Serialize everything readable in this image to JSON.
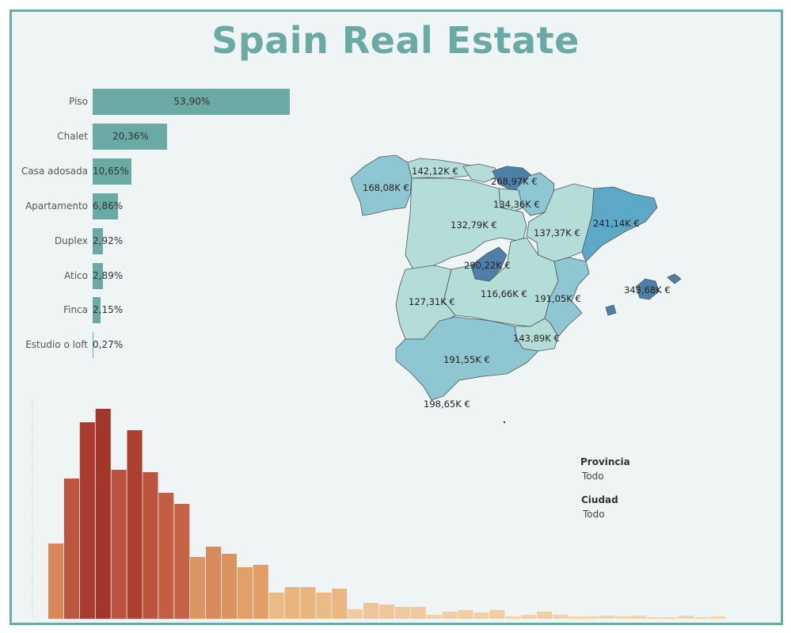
{
  "title": "Spain Real Estate",
  "filters": [
    {
      "label": "Provincia",
      "value": "Todo"
    },
    {
      "label": "Ciudad",
      "value": "Todo"
    }
  ],
  "colors": {
    "teal": "#6aa9a4",
    "map_light": "#b5ddd8",
    "map_mid": "#8ec6d2",
    "map_dark": "#5da8c7",
    "map_darkest": "#4e7fa8",
    "hist_dark": "#a3362a",
    "hist_mid": "#c9684a",
    "hist_light": "#f3d6b1"
  },
  "chart_data": [
    {
      "type": "bar",
      "orientation": "horizontal",
      "categories": [
        "Piso",
        "Chalet",
        "Casa adosada",
        "Apartamento",
        "Duplex",
        "Atico",
        "Finca",
        "Estudio o loft"
      ],
      "values": [
        53.9,
        20.36,
        10.65,
        6.86,
        2.92,
        2.89,
        2.15,
        0.27
      ],
      "labels": [
        "53,90%",
        "20,36%",
        "10,65%",
        "6,86%",
        "2,92%",
        "2,89%",
        "2,15%",
        "0,27%"
      ]
    },
    {
      "type": "map",
      "regions": [
        {
          "name": "Galicia",
          "label": "168,08K €",
          "value": 168.08
        },
        {
          "name": "Asturias",
          "label": "142,12K €",
          "value": 142.12
        },
        {
          "name": "País Vasco",
          "label": "268,97K €",
          "value": 268.97
        },
        {
          "name": "Navarra",
          "label": "134,36K €",
          "value": 134.36
        },
        {
          "name": "Castilla y León",
          "label": "132,79K €",
          "value": 132.79
        },
        {
          "name": "Aragón",
          "label": "137,37K €",
          "value": 137.37
        },
        {
          "name": "Cataluña",
          "label": "241,14K €",
          "value": 241.14
        },
        {
          "name": "Madrid",
          "label": "290,22K €",
          "value": 290.22
        },
        {
          "name": "Baleares",
          "label": "343,68K €",
          "value": 343.68
        },
        {
          "name": "Extremadura",
          "label": "127,31K €",
          "value": 127.31
        },
        {
          "name": "Castilla-La Mancha",
          "label": "116,66K €",
          "value": 116.66
        },
        {
          "name": "Valencia",
          "label": "191,05K €",
          "value": 191.05
        },
        {
          "name": "Murcia",
          "label": "143,89K €",
          "value": 143.89
        },
        {
          "name": "Andalucía",
          "label": "191,55K €",
          "value": 191.55
        },
        {
          "name": "Canarias",
          "label": "198,65K €",
          "value": 198.65
        }
      ]
    },
    {
      "type": "histogram",
      "values": [
        95,
        177,
        248,
        265,
        188,
        238,
        185,
        159,
        145,
        78,
        91,
        82,
        65,
        68,
        33,
        40,
        40,
        33,
        38,
        12,
        20,
        18,
        15,
        15,
        5,
        9,
        11,
        8,
        11,
        3,
        5,
        9,
        5,
        3,
        3,
        4,
        3,
        4,
        2,
        2,
        4,
        2,
        3
      ]
    }
  ]
}
